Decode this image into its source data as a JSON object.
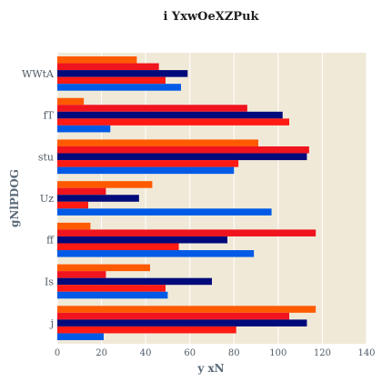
{
  "chart_data": {
    "type": "bar",
    "orientation": "horizontal",
    "title": "i YxwOeXZPuk",
    "xlabel": "y xN",
    "ylabel": "gNlPDOG",
    "categories": [
      "WWtA",
      "fT",
      "stu",
      "Uz",
      "ff",
      "Is",
      "j"
    ],
    "series": [
      {
        "color": "#ff5a00",
        "values": [
          36,
          12,
          91,
          43,
          15,
          42,
          117
        ]
      },
      {
        "color": "#f0141e",
        "values": [
          46,
          86,
          114,
          22,
          117,
          22,
          105
        ]
      },
      {
        "color": "#000a7a",
        "values": [
          59,
          102,
          113,
          37,
          77,
          70,
          113
        ]
      },
      {
        "color": "#ff1a14",
        "values": [
          49,
          105,
          82,
          14,
          55,
          49,
          81
        ]
      },
      {
        "color": "#005ae6",
        "values": [
          56,
          24,
          80,
          97,
          89,
          50,
          21
        ]
      }
    ],
    "xlim": [
      0,
      140
    ],
    "xticks": [
      0,
      20,
      40,
      60,
      80,
      100,
      120,
      140
    ],
    "grid": true,
    "legend": "none",
    "background": "#f0e9d8"
  }
}
